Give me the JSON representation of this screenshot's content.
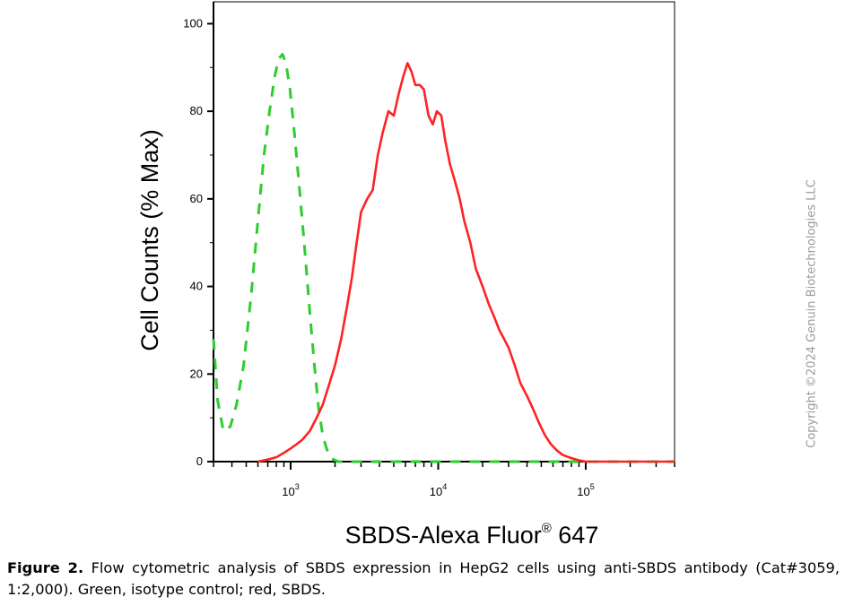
{
  "chart_data": {
    "type": "line",
    "title": "",
    "ylabel": "Cell Counts (% Max)",
    "xlabel": "SBDS-Alexa Fluor",
    "xlabel_reg": "®",
    "xlabel_suffix": " 647",
    "x_scale": "log",
    "xlim": [
      300,
      400000
    ],
    "ylim": [
      0,
      105
    ],
    "yticks": [
      0,
      20,
      40,
      60,
      80,
      100
    ],
    "xticks_major": [
      {
        "value": 1000,
        "base": "10",
        "exp": "3"
      },
      {
        "value": 10000,
        "base": "10",
        "exp": "4"
      },
      {
        "value": 100000,
        "base": "10",
        "exp": "5"
      }
    ],
    "series": [
      {
        "color": "#2ecc2e",
        "dash": "dashed",
        "x": [
          300,
          320,
          350,
          390,
          430,
          480,
          540,
          600,
          660,
          720,
          780,
          830,
          880,
          930,
          990,
          1060,
          1150,
          1250,
          1350,
          1450,
          1550,
          1650,
          1750,
          1850,
          1950,
          2100,
          2500,
          5000,
          20000,
          100000,
          400000
        ],
        "y": [
          28,
          14,
          7,
          8,
          13,
          22,
          38,
          55,
          70,
          80,
          88,
          92,
          93,
          91,
          85,
          75,
          62,
          48,
          34,
          22,
          12,
          6,
          3,
          1,
          0.5,
          0,
          0,
          0,
          0,
          0,
          0
        ]
      },
      {
        "color": "#ff2222",
        "dash": "solid",
        "x": [
          600,
          700,
          800,
          900,
          1000,
          1100,
          1200,
          1350,
          1500,
          1650,
          1800,
          2000,
          2200,
          2400,
          2600,
          2800,
          3000,
          3300,
          3600,
          3900,
          4200,
          4600,
          5000,
          5400,
          5800,
          6200,
          6600,
          7000,
          7500,
          8000,
          8600,
          9200,
          9800,
          10500,
          11200,
          12000,
          13000,
          14000,
          15000,
          16500,
          18000,
          20000,
          22000,
          24000,
          26000,
          28000,
          30000,
          33000,
          36000,
          40000,
          44000,
          48000,
          53000,
          58000,
          64000,
          70000,
          80000,
          90000,
          100000,
          120000,
          150000,
          200000,
          400000
        ],
        "y": [
          0,
          0.5,
          1,
          2,
          3,
          4,
          5,
          7,
          10,
          13,
          17,
          22,
          28,
          35,
          42,
          50,
          57,
          60,
          62,
          70,
          75,
          80,
          79,
          84,
          88,
          91,
          89,
          86,
          86,
          85,
          79,
          77,
          80,
          79,
          73,
          68,
          64,
          60,
          55,
          50,
          44,
          40,
          36,
          33,
          30,
          28,
          26,
          22,
          18,
          15,
          12,
          9,
          6,
          4,
          2.5,
          1.5,
          0.8,
          0.3,
          0,
          0,
          0,
          0,
          0
        ]
      }
    ]
  },
  "caption": {
    "figure_label": "Figure 2.",
    "text": " Flow cytometric analysis of SBDS expression in HepG2 cells using anti-SBDS antibody (Cat#3059, 1:2,000). Green, isotype control; red, SBDS."
  },
  "copyright": "Copyright ©2024 Genuin Biotechnologies LLC"
}
